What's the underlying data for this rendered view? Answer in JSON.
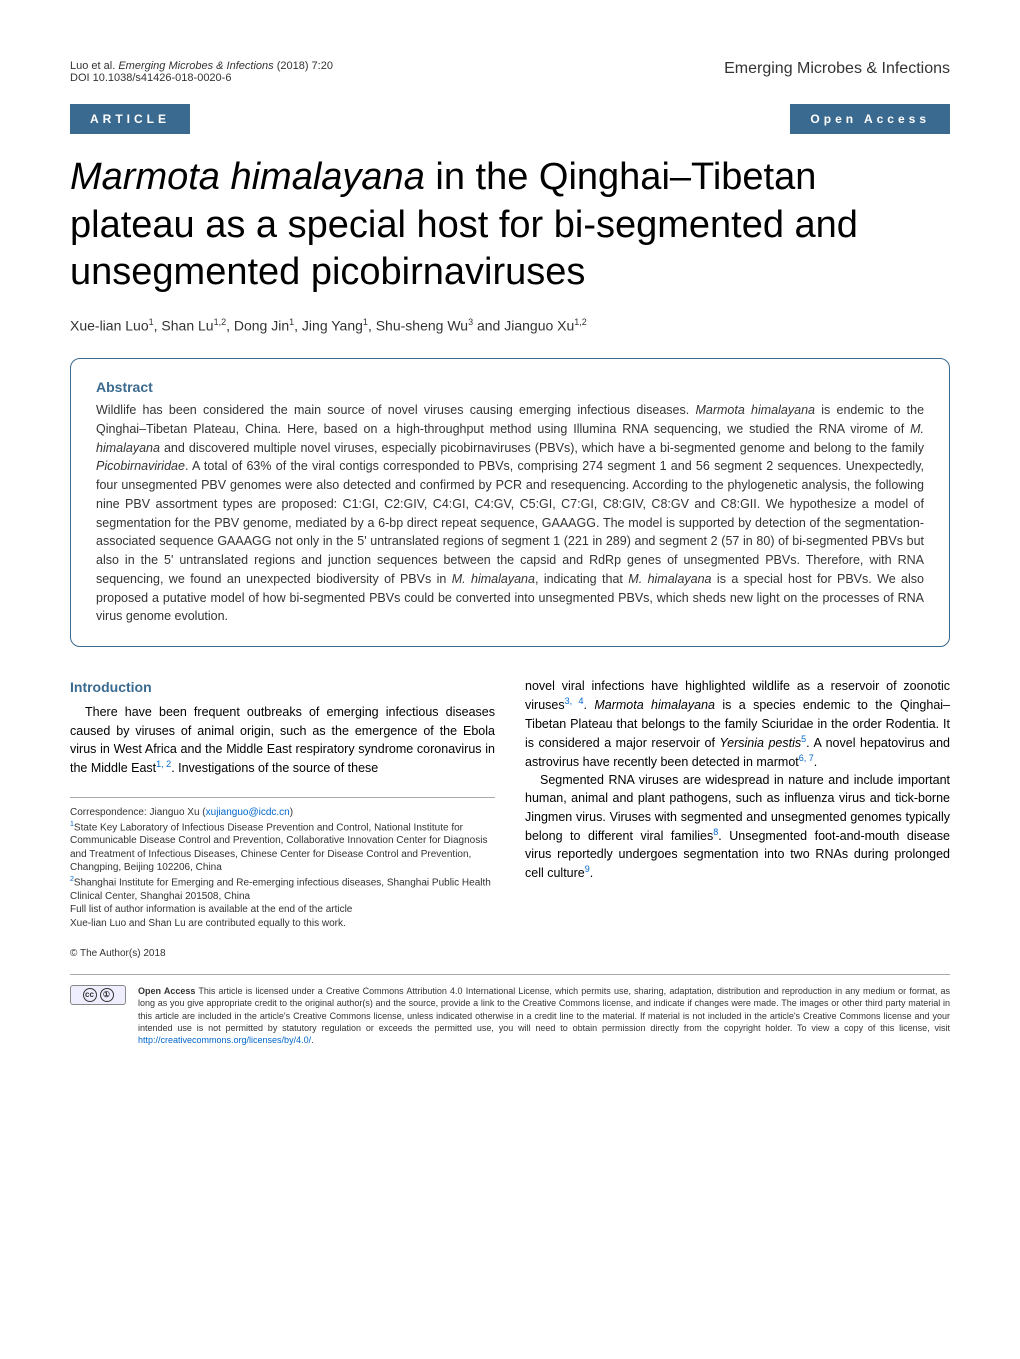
{
  "header": {
    "citation_authors": "Luo et al.",
    "citation_journal_italic": "Emerging Microbes & Infections",
    "citation_year_vol": "(2018) 7:20",
    "doi": "DOI 10.1038/s41426-018-0020-6",
    "journal_name": "Emerging Microbes & Infections"
  },
  "badges": {
    "article": "ARTICLE",
    "open_access": "Open Access"
  },
  "title": {
    "italic_part": "Marmota himalayana",
    "rest": " in the Qinghai–Tibetan plateau as a special host for bi-segmented and unsegmented picobirnaviruses"
  },
  "authors": {
    "line": "Xue-lian Luo",
    "a1_sup": "1",
    "a2": ", Shan Lu",
    "a2_sup": "1,2",
    "a3": ", Dong Jin",
    "a3_sup": "1",
    "a4": ", Jing Yang",
    "a4_sup": "1",
    "a5": ", Shu-sheng Wu",
    "a5_sup": "3",
    "a6": " and Jianguo Xu",
    "a6_sup": "1,2"
  },
  "abstract": {
    "heading": "Abstract",
    "text_pre": "Wildlife has been considered the main source of novel viruses causing emerging infectious diseases. ",
    "italic1": "Marmota himalayana",
    "text2": " is endemic to the Qinghai–Tibetan Plateau, China. Here, based on a high-throughput method using Illumina RNA sequencing, we studied the RNA virome of ",
    "italic2": "M. himalayana",
    "text3": " and discovered multiple novel viruses, especially picobirnaviruses (PBVs), which have a bi-segmented genome and belong to the family ",
    "italic3": "Picobirnaviridae",
    "text4": ". A total of 63% of the viral contigs corresponded to PBVs, comprising 274 segment 1 and 56 segment 2 sequences. Unexpectedly, four unsegmented PBV genomes were also detected and confirmed by PCR and resequencing. According to the phylogenetic analysis, the following nine PBV assortment types are proposed: C1:GI, C2:GIV, C4:GI, C4:GV, C5:GI, C7:GI, C8:GIV, C8:GV and C8:GII. We hypothesize a model of segmentation for the PBV genome, mediated by a 6-bp direct repeat sequence, GAAAGG. The model is supported by detection of the segmentation-associated sequence GAAAGG not only in the 5' untranslated regions of segment 1 (221 in 289) and segment 2 (57 in 80) of bi-segmented PBVs but also in the 5' untranslated regions and junction sequences between the capsid and RdRp genes of unsegmented PBVs. Therefore, with RNA sequencing, we found an unexpected biodiversity of PBVs in ",
    "italic4": "M. himalayana",
    "text5": ", indicating that ",
    "italic5": "M. himalayana",
    "text6": " is a special host for PBVs. We also proposed a putative model of how bi-segmented PBVs could be converted into unsegmented PBVs, which sheds new light on the processes of RNA virus genome evolution."
  },
  "introduction": {
    "heading": "Introduction",
    "left_p1_a": "There have been frequent outbreaks of emerging infectious diseases caused by viruses of animal origin, such as the emergence of the Ebola virus in West Africa and the Middle East respiratory syndrome coronavirus in the Middle East",
    "left_p1_ref1": "1, 2",
    "left_p1_b": ". Investigations of the source of these",
    "right_p1_a": "novel viral infections have highlighted wildlife as a reservoir of zoonotic viruses",
    "right_p1_ref1": "3, 4",
    "right_p1_b": ". ",
    "right_p1_italic1": "Marmota himalayana",
    "right_p1_c": " is a species endemic to the Qinghai–Tibetan Plateau that belongs to the family Sciuridae in the order Rodentia. It is considered a major reservoir of ",
    "right_p1_italic2": "Yersinia pestis",
    "right_p1_ref2": "5",
    "right_p1_d": ". A novel hepatovirus and astrovirus have recently been detected in marmot",
    "right_p1_ref3": "6, 7",
    "right_p1_e": ".",
    "right_p2_a": "Segmented RNA viruses are widespread in nature and include important human, animal and plant pathogens, such as influenza virus and tick-borne Jingmen virus. Viruses with segmented and unsegmented genomes typically belong to different viral families",
    "right_p2_ref1": "8",
    "right_p2_b": ". Unsegmented foot-and-mouth disease virus reportedly undergoes segmentation into two RNAs during prolonged cell culture",
    "right_p2_ref2": "9",
    "right_p2_c": "."
  },
  "footnotes": {
    "correspondence_label": "Correspondence: Jianguo Xu (",
    "correspondence_email": "xujianguo@icdc.cn",
    "correspondence_close": ")",
    "affil1": "State Key Laboratory of Infectious Disease Prevention and Control, National Institute for Communicable Disease Control and Prevention, Collaborative Innovation Center for Diagnosis and Treatment of Infectious Diseases, Chinese Center for Disease Control and Prevention, Changping, Beijing 102206, China",
    "affil2": "Shanghai Institute for Emerging and Re-emerging infectious diseases, Shanghai Public Health Clinical Center, Shanghai 201508, China",
    "full_list": "Full list of author information is available at the end of the article",
    "equal": "Xue-lian Luo and Shan Lu are contributed equally to this work."
  },
  "copyright": "© The Author(s) 2018",
  "license": {
    "bold": "Open Access",
    "text1": " This article is licensed under a Creative Commons Attribution 4.0 International License, which permits use, sharing, adaptation, distribution and reproduction in any medium or format, as long as you give appropriate credit to the original author(s) and the source, provide a link to the Creative Commons license, and indicate if changes were made. The images or other third party material in this article are included in the article's Creative Commons license, unless indicated otherwise in a credit line to the material. If material is not included in the article's Creative Commons license and your intended use is not permitted by statutory regulation or exceeds the permitted use, you will need to obtain permission directly from the copyright holder. To view a copy of this license, visit ",
    "link": "http://creativecommons.org/licenses/by/4.0/",
    "text2": "."
  }
}
